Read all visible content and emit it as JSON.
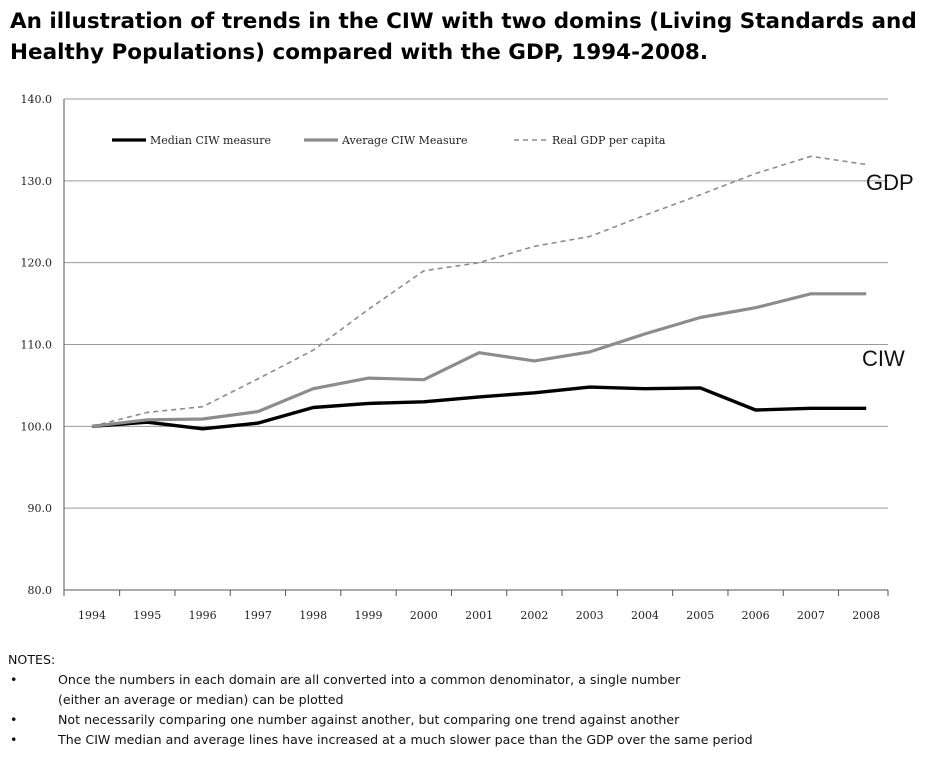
{
  "chart_data": {
    "type": "line",
    "title": "An illustration of trends in the CIW with two domins (Living Standards and Healthy Populations) compared with the GDP, 1994-2008.",
    "x": [
      "1994",
      "1995",
      "1996",
      "1997",
      "1998",
      "1999",
      "2000",
      "2001",
      "2002",
      "2003",
      "2004",
      "2005",
      "2006",
      "2007",
      "2008"
    ],
    "ylim": [
      80,
      140
    ],
    "yticks": [
      "80.0",
      "90.0",
      "100.0",
      "110.0",
      "120.0",
      "130.0",
      "140.0"
    ],
    "grid": true,
    "legend_position": "top-left",
    "series": [
      {
        "name": "Median CIW measure",
        "color": "#000000",
        "style": "solid",
        "values": [
          100.0,
          100.5,
          99.7,
          100.4,
          102.3,
          102.8,
          103.0,
          103.6,
          104.1,
          104.8,
          104.6,
          104.7,
          102.0,
          102.2,
          102.2
        ]
      },
      {
        "name": "Average CIW Measure",
        "color": "#8c8c8c",
        "style": "solid",
        "values": [
          100.0,
          100.8,
          100.9,
          101.8,
          104.6,
          105.9,
          105.7,
          109.0,
          108.0,
          109.1,
          111.3,
          113.3,
          114.5,
          116.2,
          116.2
        ]
      },
      {
        "name": "Real GDP per capita",
        "color": "#8c8c8c",
        "style": "dashed",
        "values": [
          100.0,
          101.7,
          102.4,
          105.8,
          109.3,
          114.3,
          119.0,
          120.0,
          122.0,
          123.2,
          125.8,
          128.3,
          130.9,
          133.0,
          132.0
        ]
      }
    ],
    "annotations": [
      {
        "text": "GDP",
        "near": "Real GDP per capita"
      },
      {
        "text": "CIW",
        "near": "Average CIW Measure"
      }
    ]
  },
  "notes": {
    "heading": "NOTES:",
    "items": [
      {
        "line1": "Once the numbers in each domain are all converted into a common denominator, a single number",
        "line2": "(either an average or median) can be plotted"
      },
      {
        "line1": "Not necessarily comparing one number against another, but comparing one trend against another",
        "line2": ""
      },
      {
        "line1": "The CIW median and average lines have increased at a much slower pace than the GDP over the same period",
        "line2": ""
      }
    ]
  }
}
